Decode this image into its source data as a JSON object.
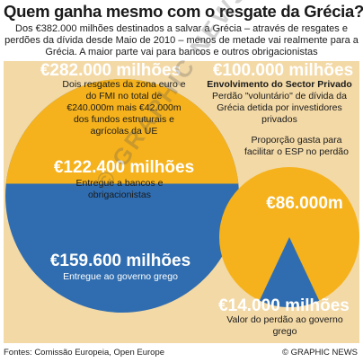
{
  "title": "Quem ganha mesmo com o resgate da Grécia?",
  "intro": "Dos €382.000 milhões destinados a salvar a Grécia – através de resgates e perdões da dívida desde Maio de 2010 – menos de metade vai realmente para a Grécia. A maior parte vai para bancos e outros obrigacionistas",
  "left": {
    "total_label": "€282.000 milhões",
    "total_caption": "Dois resgates da zona euro e do FMI no total de €240.000m mais €42.000m dos fundos estruturais e agrícolas da UE",
    "top_value": "€122.400 milhões",
    "top_caption": "Entregue a bancos e obrigacionistas",
    "bottom_value": "€159.600 milhões",
    "bottom_caption": "Entregue ao governo grego"
  },
  "right": {
    "total_label": "€100.000 milhões",
    "heading": "Envolvimento do Sector Privado",
    "caption": "Perdão \"voluntário\" de dívida da Grécia detida por investidores privados",
    "wedge_label": "Proporção gasta para facilitar o ESP no perdão",
    "wedge_value": "€86.000m",
    "bottom_value": "€14.000 milhões",
    "bottom_caption": "Valor do perdão ao governo grego"
  },
  "footer": {
    "sources": "Fontes: Comissão Europeia, Open Europe",
    "credit": "© GRAPHIC NEWS"
  },
  "watermark": "© GRAPHIC NEWS",
  "colors": {
    "gold": "#f5b21c",
    "blue": "#2f6db0",
    "panel": "#f3d9a6",
    "label_white": "#ffffff",
    "dark_text": "#1a1a1a"
  },
  "chart_data": [
    {
      "type": "pie",
      "total": 282000,
      "unit": "€ milhões",
      "slices": [
        {
          "label": "Entregue a bancos e obrigacionistas",
          "value": 122400
        },
        {
          "label": "Entregue ao governo grego",
          "value": 159600
        }
      ]
    },
    {
      "type": "pie",
      "total": 100000,
      "unit": "€ milhões",
      "slices": [
        {
          "label": "Proporção gasta para facilitar o ESP no perdão",
          "value": 86000
        },
        {
          "label": "Valor do perdão ao governo grego",
          "value": 14000
        }
      ]
    }
  ]
}
